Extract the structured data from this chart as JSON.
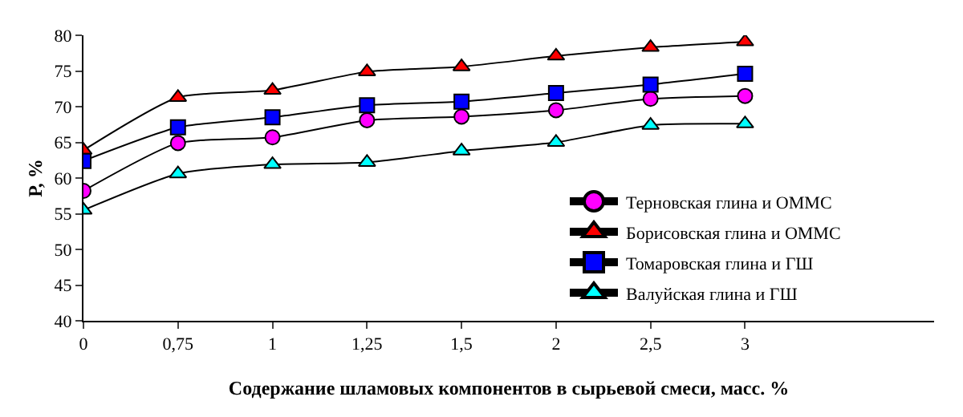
{
  "chart_data": {
    "type": "line",
    "xlabel": "Содержание шламовых компонентов в сырьевой смеси, масс. %",
    "ylabel": "Р, %",
    "categories": [
      "0",
      "0,75",
      "1",
      "1,25",
      "1,5",
      "2",
      "2,5",
      "3",
      null,
      null
    ],
    "ylim": [
      40,
      80
    ],
    "yticks": [
      40,
      45,
      50,
      55,
      60,
      65,
      70,
      75,
      80
    ],
    "grid": false,
    "legend": "bottom right",
    "series": [
      {
        "name": "Терновская глина и ОММС",
        "color": "#ff00ff",
        "marker": "circle",
        "values": [
          58.2,
          64.9,
          65.7,
          68.1,
          68.6,
          69.5,
          71.1,
          71.5,
          null,
          null
        ]
      },
      {
        "name": "Борисовская глина и ОММС",
        "color": "#ff0000",
        "marker": "triangle",
        "values": [
          63.9,
          71.3,
          72.3,
          74.9,
          75.6,
          77.1,
          78.3,
          79.1,
          null,
          null
        ]
      },
      {
        "name": "Томаровская глина и ГШ",
        "color": "#0000ff",
        "marker": "square",
        "values": [
          62.4,
          67.1,
          68.5,
          70.2,
          70.7,
          71.9,
          73.1,
          74.6,
          null,
          null
        ]
      },
      {
        "name": "Валуйская глина и ГШ",
        "color": "#00ffff",
        "marker": "triangle",
        "values": [
          55.5,
          60.6,
          61.9,
          62.2,
          63.8,
          65.0,
          67.4,
          67.6,
          null,
          null
        ]
      }
    ]
  }
}
